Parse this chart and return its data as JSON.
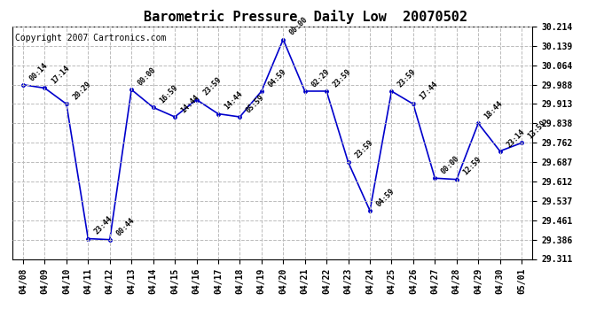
{
  "title": "Barometric Pressure  Daily Low  20070502",
  "copyright": "Copyright 2007 Cartronics.com",
  "x_labels": [
    "04/08",
    "04/09",
    "04/10",
    "04/11",
    "04/12",
    "04/13",
    "04/14",
    "04/15",
    "04/16",
    "04/17",
    "04/18",
    "04/19",
    "04/20",
    "04/21",
    "04/22",
    "04/23",
    "04/24",
    "04/25",
    "04/26",
    "04/27",
    "04/28",
    "04/29",
    "04/30",
    "05/01"
  ],
  "y_values": [
    29.988,
    29.975,
    29.913,
    29.39,
    29.386,
    29.969,
    29.9,
    29.863,
    29.93,
    29.875,
    29.863,
    29.963,
    30.164,
    29.963,
    29.963,
    29.687,
    29.499,
    29.963,
    29.913,
    29.625,
    29.62,
    29.838,
    29.73,
    29.762
  ],
  "time_labels": [
    "00:14",
    "17:14",
    "20:29",
    "23:44",
    "00:44",
    "00:00",
    "16:59",
    "14:44",
    "23:59",
    "14:44",
    "05:59",
    "04:59",
    "00:00",
    "02:29",
    "23:59",
    "23:59",
    "04:59",
    "23:59",
    "17:44",
    "00:00",
    "12:59",
    "18:44",
    "23:14",
    "13:59"
  ],
  "ylim_min": 29.311,
  "ylim_max": 30.214,
  "yticks": [
    29.311,
    29.386,
    29.461,
    29.537,
    29.612,
    29.687,
    29.762,
    29.838,
    29.913,
    29.988,
    30.064,
    30.139,
    30.214
  ],
  "line_color": "#0000CC",
  "marker_color": "#0000CC",
  "bg_color": "#FFFFFF",
  "grid_color": "#BBBBBB",
  "title_fontsize": 11,
  "copyright_fontsize": 7,
  "tick_label_fontsize": 7,
  "annotation_fontsize": 6,
  "figwidth": 6.9,
  "figheight": 3.75,
  "dpi": 100
}
